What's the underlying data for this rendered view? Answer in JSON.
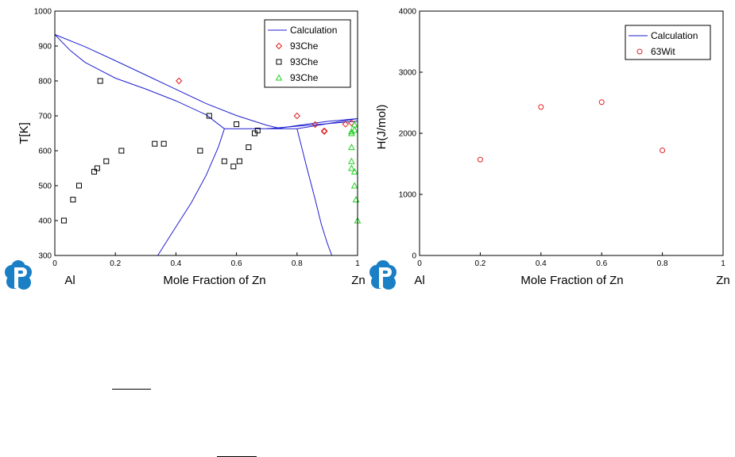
{
  "colors": {
    "calculation": "#1f1fd0",
    "exp_red": "#e02020",
    "exp_black": "#000000",
    "exp_green": "#20d020",
    "logo": "#1a7fc4"
  },
  "chart_data": [
    {
      "type": "scatter",
      "title": "",
      "xlabel": "Mole Fraction of Zn",
      "ylabel": "T[K]",
      "x_left_label": "Al",
      "x_right_label": "Zn",
      "xlim": [
        0,
        1
      ],
      "ylim": [
        300,
        1000
      ],
      "xticks": [
        "0",
        "0.2",
        "0.4",
        "0.6",
        "0.8",
        "1"
      ],
      "yticks": [
        "300",
        "400",
        "500",
        "600",
        "700",
        "800",
        "900",
        "1000"
      ],
      "legend_position": "top-right",
      "legend": [
        {
          "label": "Calculation",
          "marker": "line",
          "color": "#1f1fd0"
        },
        {
          "label": "93Che",
          "marker": "diamond",
          "color": "#e02020"
        },
        {
          "label": "93Che",
          "marker": "square",
          "color": "#000000"
        },
        {
          "label": "93Che",
          "marker": "triangle",
          "color": "#20d020"
        }
      ],
      "calculation_lines": [
        {
          "name": "Calculation",
          "points": [
            [
              0,
              933
            ],
            [
              0.1,
              898
            ],
            [
              0.2,
              858
            ],
            [
              0.3,
              817
            ],
            [
              0.4,
              776
            ],
            [
              0.5,
              735
            ],
            [
              0.6,
              701
            ],
            [
              0.7,
              673
            ],
            [
              0.75,
              663
            ]
          ]
        },
        {
          "name": "Calculation",
          "points": [
            [
              0,
              933
            ],
            [
              0.05,
              888
            ],
            [
              0.1,
              853
            ],
            [
              0.2,
              808
            ],
            [
              0.3,
              777
            ],
            [
              0.4,
              743
            ],
            [
              0.5,
              703
            ],
            [
              0.56,
              663
            ]
          ]
        },
        {
          "name": "Calculation",
          "points": [
            [
              0.56,
              663
            ],
            [
              0.8,
              663
            ]
          ]
        },
        {
          "name": "Calculation",
          "points": [
            [
              0.34,
              300
            ],
            [
              0.4,
              382
            ],
            [
              0.45,
              450
            ],
            [
              0.5,
              530
            ],
            [
              0.54,
              610
            ],
            [
              0.56,
              663
            ]
          ]
        },
        {
          "name": "Calculation",
          "points": [
            [
              0.8,
              663
            ],
            [
              0.83,
              560
            ],
            [
              0.86,
              460
            ],
            [
              0.88,
              390
            ],
            [
              0.9,
              335
            ],
            [
              0.915,
              300
            ]
          ]
        },
        {
          "name": "Calculation",
          "points": [
            [
              0.7,
              663
            ],
            [
              1,
              685
            ]
          ]
        },
        {
          "name": "Calculation",
          "points": [
            [
              0.8,
              663
            ],
            [
              1,
              692
            ]
          ]
        },
        {
          "name": "Calculation",
          "points": [
            [
              0.73,
              663
            ],
            [
              0.8,
              672
            ],
            [
              0.9,
              684
            ],
            [
              1,
              692
            ]
          ]
        }
      ],
      "series": [
        {
          "name": "93Che",
          "marker": "diamond",
          "color": "#e02020",
          "points": [
            [
              0.41,
              800
            ],
            [
              0.8,
              700
            ],
            [
              0.86,
              675
            ],
            [
              0.89,
              657
            ],
            [
              0.89,
              655
            ],
            [
              0.96,
              676
            ],
            [
              0.98,
              680
            ]
          ]
        },
        {
          "name": "93Che",
          "marker": "square",
          "color": "#000000",
          "points": [
            [
              0.03,
              400
            ],
            [
              0.06,
              460
            ],
            [
              0.08,
              500
            ],
            [
              0.13,
              540
            ],
            [
              0.14,
              550
            ],
            [
              0.15,
              800
            ],
            [
              0.17,
              570
            ],
            [
              0.22,
              600
            ],
            [
              0.33,
              620
            ],
            [
              0.36,
              620
            ],
            [
              0.48,
              600
            ],
            [
              0.51,
              700
            ],
            [
              0.56,
              570
            ],
            [
              0.59,
              555
            ],
            [
              0.6,
              676
            ],
            [
              0.61,
              570
            ],
            [
              0.64,
              610
            ],
            [
              0.66,
              650
            ],
            [
              0.67,
              658
            ]
          ]
        },
        {
          "name": "93Che",
          "marker": "triangle",
          "color": "#20d020",
          "points": [
            [
              0.98,
              655
            ],
            [
              0.98,
              650
            ],
            [
              0.99,
              660
            ],
            [
              0.99,
              675
            ],
            [
              0.98,
              610
            ],
            [
              0.98,
              570
            ],
            [
              0.98,
              550
            ],
            [
              0.99,
              540
            ],
            [
              0.99,
              500
            ],
            [
              0.995,
              460
            ],
            [
              1.0,
              400
            ]
          ]
        }
      ]
    },
    {
      "type": "scatter",
      "title": "",
      "xlabel": "Mole Fraction of Zn",
      "ylabel": "H(J/mol)",
      "x_left_label": "Al",
      "x_right_label": "Zn",
      "xlim": [
        0,
        1
      ],
      "ylim": [
        0,
        4000
      ],
      "xticks": [
        "0",
        "0.2",
        "0.4",
        "0.6",
        "0.8",
        "1"
      ],
      "yticks": [
        "0",
        "1000",
        "2000",
        "3000",
        "4000"
      ],
      "legend_position": "top-right",
      "legend": [
        {
          "label": "Calculation",
          "marker": "line",
          "color": "#1f1fd0"
        },
        {
          "label": "63Wit",
          "marker": "circle",
          "color": "#e02020"
        }
      ],
      "series": [
        {
          "name": "63Wit",
          "marker": "circle",
          "color": "#e02020",
          "points": [
            [
              0.2,
              1570
            ],
            [
              0.4,
              2430
            ],
            [
              0.6,
              2510
            ],
            [
              0.8,
              1720
            ]
          ]
        }
      ]
    }
  ]
}
